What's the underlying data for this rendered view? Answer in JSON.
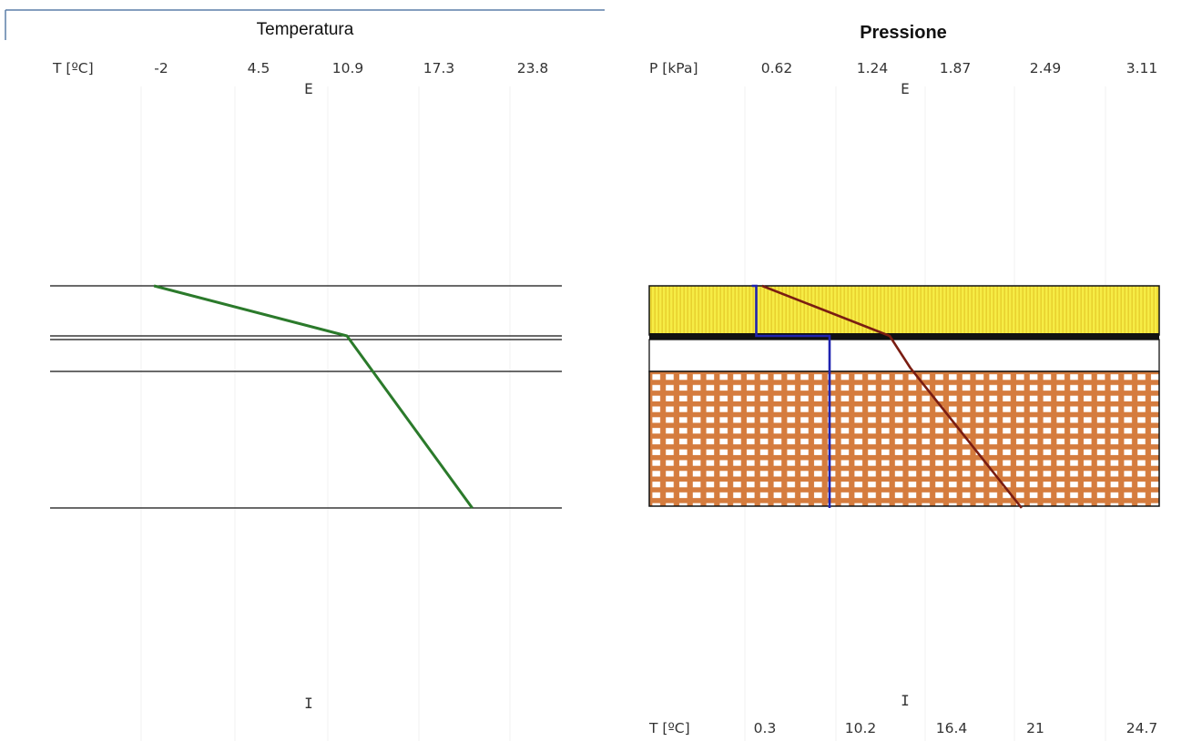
{
  "colors": {
    "frame_accent": "#5b7fa8",
    "grid": "#f2f2f2",
    "layer_line": "#111111",
    "temperature_profile": "#2b7a2b",
    "pressure_saturation": "#7a1d12",
    "pressure_vapour": "#1f23b0",
    "insulation_fill": "#f6ec45",
    "insulation_pattern": "#e3c623",
    "brick_fill": "#d57c3e",
    "brick_hole": "#ffffff"
  },
  "chart_data": [
    {
      "type": "line",
      "title": "Temperatura",
      "xlabel": "T [ºC]",
      "x_ticks": [
        "-2",
        "4.5",
        "10.9",
        "17.3",
        "23.8"
      ],
      "outside_label": "E",
      "inside_label": "I",
      "grid": true,
      "series": [
        {
          "values": [
            -2.5,
            10.9,
            19.6
          ],
          "depth": [
            "outer surface",
            "insulation / air interface",
            "inner surface"
          ]
        }
      ],
      "layer_boundaries_count": 5
    },
    {
      "type": "line",
      "title": "Pressione",
      "xlabel": "P [kPa]",
      "x_ticks": [
        "0.62",
        "1.24",
        "1.87",
        "2.49",
        "3.11"
      ],
      "x2label": "T [ºC]",
      "x2_ticks": [
        "0.3",
        "10.2",
        "16.4",
        "21",
        "24.7"
      ],
      "outside_label": "E",
      "inside_label": "I",
      "grid": true,
      "layers": [
        {
          "material": "insulation",
          "pattern": "vertical stripes"
        },
        {
          "material": "membrane"
        },
        {
          "material": "air gap"
        },
        {
          "material": "perforated brick",
          "pattern": "grid of holes"
        }
      ],
      "series": [
        {
          "values": [
            0.52,
            1.39,
            1.53,
            2.29
          ]
        },
        {
          "values": [
            0.45,
            0.48,
            0.48,
            0.98,
            0.98,
            0.98
          ]
        }
      ]
    }
  ]
}
